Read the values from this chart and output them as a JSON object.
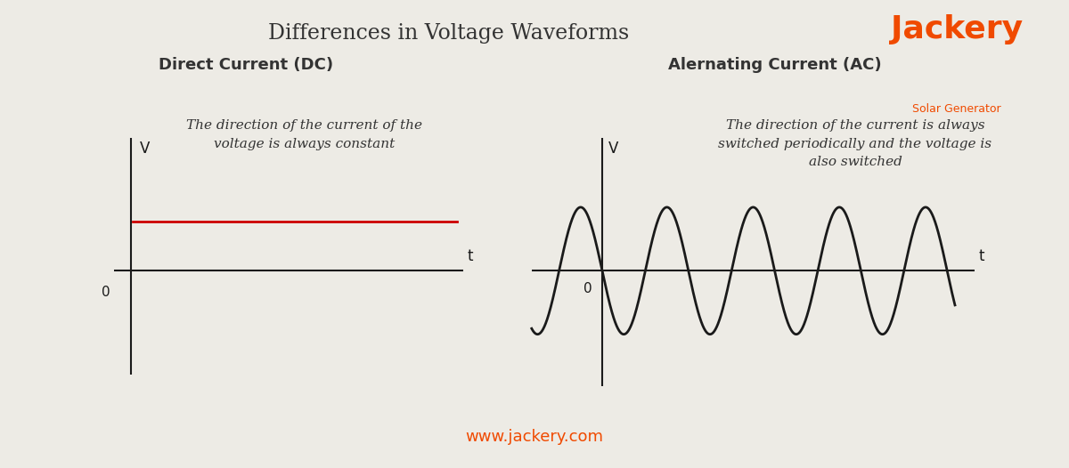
{
  "background_color": "#EDEBE5",
  "title": "Differences in Voltage Waveforms",
  "title_fontsize": 17,
  "title_color": "#333333",
  "dc_label": "Direct Current (DC)",
  "ac_label": "Alernating Current (AC)",
  "dc_desc": "The direction of the current of the\nvoltage is always constant",
  "ac_desc": "The direction of the current is always\nswitched periodically and the voltage is\nalso switched",
  "jackery_text": "Jackery",
  "jackery_sub": "Solar Generator",
  "jackery_color": "#F04A00",
  "website": "www.jackery.com",
  "website_color": "#F04A00",
  "dc_line_color": "#CC0000",
  "ac_line_color": "#1a1a1a",
  "axis_color": "#1a1a1a",
  "label_fontsize": 13,
  "desc_fontsize": 11
}
